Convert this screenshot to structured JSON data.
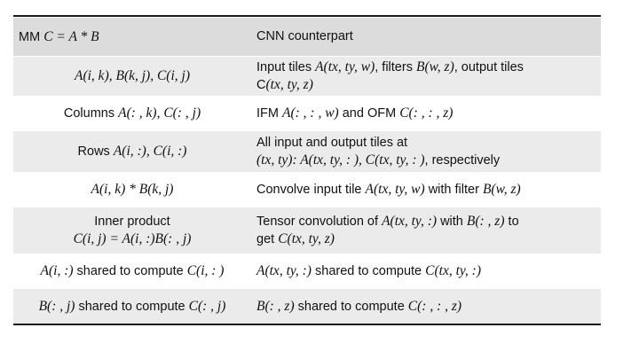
{
  "header": {
    "col1_label": "MM",
    "col1_math": "C = A * B",
    "col2_label": "CNN counterpart"
  },
  "rows": [
    {
      "c1": [
        {
          "m": "A(i, k), B(k, j), C(i, j)"
        }
      ],
      "c2": [
        [
          {
            "t": "Input tiles "
          },
          {
            "m": "A(tx, ty, w)"
          },
          {
            "t": ", filters "
          },
          {
            "m": "B(w, z)"
          },
          {
            "t": ", output tiles"
          }
        ],
        [
          {
            "t": "C"
          },
          {
            "m": "(tx, ty, z)"
          }
        ]
      ]
    },
    {
      "c1": [
        {
          "t": "Columns "
        },
        {
          "m": "A(: , k), C(: , j)"
        }
      ],
      "c2": [
        [
          {
            "t": "IFM "
          },
          {
            "m": "A(: , : , w)"
          },
          {
            "t": " and OFM "
          },
          {
            "m": "C(: , : , z)"
          }
        ]
      ]
    },
    {
      "c1": [
        {
          "t": "Rows "
        },
        {
          "m": "A(i, :), C(i, :)"
        }
      ],
      "c2": [
        [
          {
            "t": "All input and output tiles at"
          }
        ],
        [
          {
            "m": "(tx, ty): A(tx, ty, : ), C(tx, ty, : )"
          },
          {
            "t": ", respectively"
          }
        ]
      ]
    },
    {
      "c1": [
        {
          "m": "A(i, k) * B(k, j)"
        }
      ],
      "c2": [
        [
          {
            "t": "Convolve input tile "
          },
          {
            "m": "A(tx, ty, w)"
          },
          {
            "t": " with filter "
          },
          {
            "m": "B(w, z)"
          }
        ]
      ]
    },
    {
      "c1_lines": [
        [
          {
            "t": "Inner product"
          }
        ],
        [
          {
            "m": "C(i, j) = A(i, :)B(: , j)"
          }
        ]
      ],
      "c2": [
        [
          {
            "t": "Tensor convolution of "
          },
          {
            "m": "A(tx, ty, :)"
          },
          {
            "t": " with "
          },
          {
            "m": "B(: , z)"
          },
          {
            "t": " to"
          }
        ],
        [
          {
            "t": "get "
          },
          {
            "m": "C(tx, ty, z)"
          }
        ]
      ]
    },
    {
      "c1": [
        {
          "m": "A(i, :)"
        },
        {
          "t": " shared to compute "
        },
        {
          "m": "C(i, : )"
        }
      ],
      "c2": [
        [
          {
            "m": "A(tx, ty, :)"
          },
          {
            "t": " shared to compute "
          },
          {
            "m": "C(tx, ty, :)"
          }
        ]
      ]
    },
    {
      "c1": [
        {
          "m": "B(: , j)"
        },
        {
          "t": " shared to compute "
        },
        {
          "m": "C(: , j)"
        }
      ],
      "c2": [
        [
          {
            "m": "B(: , z)"
          },
          {
            "t": " shared to compute "
          },
          {
            "m": "C(: , : , z)"
          }
        ]
      ]
    }
  ]
}
